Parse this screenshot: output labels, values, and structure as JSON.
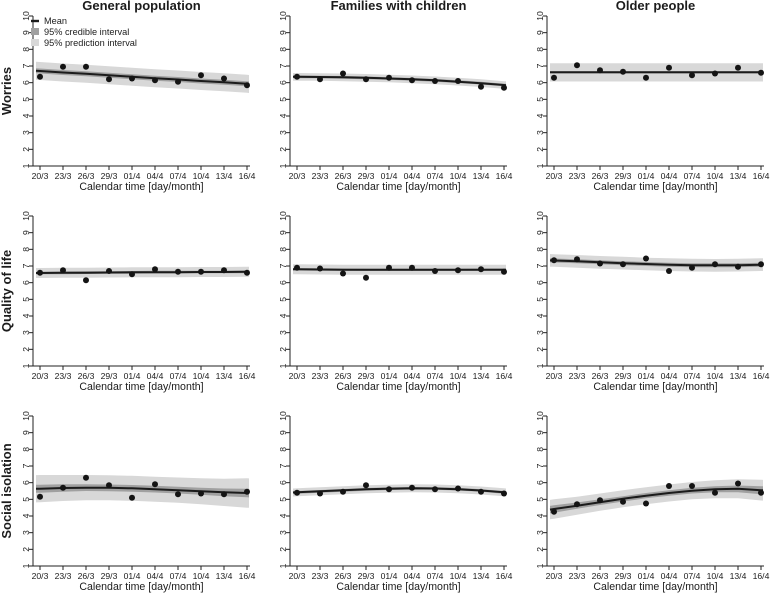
{
  "figure": {
    "columns": [
      "General population",
      "Families with children",
      "Older people"
    ],
    "rows": [
      "Worries",
      "Quality of life",
      "Social isolation"
    ],
    "x_label": "Calendar time [day/month]",
    "x_categories": [
      "20/3",
      "23/3",
      "26/3",
      "29/3",
      "01/4",
      "04/4",
      "07/4",
      "10/4",
      "13/4",
      "16/4"
    ],
    "y_ticks": [
      1,
      2,
      3,
      4,
      5,
      6,
      7,
      8,
      9,
      10
    ],
    "legend": {
      "mean": "Mean",
      "credible": "95% credible interval",
      "prediction": "95% prediction interval"
    },
    "colors": {
      "mean_line": "#1b1b1b",
      "point": "#141414",
      "credible_band": "#a0a0a0",
      "prediction_band": "#d8d8d8",
      "axis": "#222222"
    }
  },
  "chart_data": [
    {
      "type": "line",
      "row": "Worries",
      "column": "General population",
      "ylim": [
        1,
        10
      ],
      "points": [
        6.35,
        6.95,
        6.95,
        6.2,
        6.25,
        6.15,
        6.05,
        6.45,
        6.25,
        5.85
      ],
      "mean": [
        6.7,
        6.61,
        6.53,
        6.44,
        6.36,
        6.27,
        6.19,
        6.1,
        6.02,
        5.93
      ],
      "credible_hw": 0.15,
      "prediction_hw": 0.54
    },
    {
      "type": "line",
      "row": "Worries",
      "column": "Families with children",
      "ylim": [
        1,
        10
      ],
      "points": [
        6.35,
        6.2,
        6.55,
        6.2,
        6.3,
        6.15,
        6.1,
        6.1,
        5.75,
        5.7
      ],
      "mean": [
        6.35,
        6.34,
        6.32,
        6.29,
        6.25,
        6.2,
        6.14,
        6.06,
        5.97,
        5.86
      ],
      "credible_hw": 0.08,
      "prediction_hw": 0.23
    },
    {
      "type": "line",
      "row": "Worries",
      "column": "Older people",
      "ylim": [
        1,
        10
      ],
      "points": [
        6.3,
        7.05,
        6.75,
        6.65,
        6.3,
        6.9,
        6.45,
        6.55,
        6.9,
        6.6
      ],
      "mean": [
        6.62,
        6.62,
        6.62,
        6.62,
        6.62,
        6.62,
        6.62,
        6.62,
        6.62,
        6.62
      ],
      "credible_hw": 0.07,
      "prediction_hw": 0.55
    },
    {
      "type": "line",
      "row": "Quality of life",
      "column": "General population",
      "ylim": [
        1,
        10
      ],
      "points": [
        6.6,
        6.75,
        6.15,
        6.7,
        6.5,
        6.8,
        6.65,
        6.65,
        6.75,
        6.6
      ],
      "mean": [
        6.58,
        6.59,
        6.6,
        6.61,
        6.62,
        6.63,
        6.63,
        6.64,
        6.64,
        6.65
      ],
      "credible_hw": 0.08,
      "prediction_hw": 0.3
    },
    {
      "type": "line",
      "row": "Quality of life",
      "column": "Families with children",
      "ylim": [
        1,
        10
      ],
      "points": [
        6.9,
        6.85,
        6.55,
        6.3,
        6.9,
        6.9,
        6.7,
        6.75,
        6.8,
        6.65
      ],
      "mean": [
        6.8,
        6.79,
        6.78,
        6.77,
        6.77,
        6.77,
        6.77,
        6.77,
        6.78,
        6.78
      ],
      "credible_hw": 0.07,
      "prediction_hw": 0.3
    },
    {
      "type": "line",
      "row": "Quality of life",
      "column": "Older people",
      "ylim": [
        1,
        10
      ],
      "points": [
        7.35,
        7.4,
        7.15,
        7.1,
        7.45,
        6.7,
        6.9,
        7.1,
        6.95,
        7.1
      ],
      "mean": [
        7.33,
        7.28,
        7.22,
        7.17,
        7.12,
        7.08,
        7.05,
        7.04,
        7.05,
        7.08
      ],
      "credible_hw": 0.12,
      "prediction_hw": 0.38
    },
    {
      "type": "line",
      "row": "Social isolation",
      "column": "General population",
      "ylim": [
        1,
        10
      ],
      "points": [
        5.15,
        5.7,
        6.3,
        5.85,
        5.1,
        5.9,
        5.3,
        5.35,
        5.3,
        5.45
      ],
      "mean": [
        5.64,
        5.68,
        5.7,
        5.69,
        5.66,
        5.61,
        5.55,
        5.48,
        5.42,
        5.38
      ],
      "credible_hw": [
        0.24,
        0.22,
        0.2,
        0.2,
        0.2,
        0.2,
        0.2,
        0.21,
        0.23,
        0.26
      ],
      "prediction_hw": [
        0.82,
        0.78,
        0.76,
        0.75,
        0.75,
        0.75,
        0.76,
        0.78,
        0.82,
        0.88
      ]
    },
    {
      "type": "line",
      "row": "Social isolation",
      "column": "Families with children",
      "ylim": [
        1,
        10
      ],
      "points": [
        5.4,
        5.35,
        5.45,
        5.85,
        5.6,
        5.7,
        5.6,
        5.65,
        5.45,
        5.35
      ],
      "mean": [
        5.42,
        5.48,
        5.54,
        5.6,
        5.64,
        5.66,
        5.65,
        5.61,
        5.53,
        5.42
      ],
      "credible_hw": 0.08,
      "prediction_hw": 0.24
    },
    {
      "type": "line",
      "row": "Social isolation",
      "column": "Older people",
      "ylim": [
        1,
        10
      ],
      "points": [
        4.25,
        4.7,
        4.95,
        4.85,
        4.75,
        5.8,
        5.8,
        5.4,
        5.95,
        5.4
      ],
      "mean": [
        4.42,
        4.62,
        4.83,
        5.03,
        5.22,
        5.38,
        5.52,
        5.61,
        5.63,
        5.55
      ],
      "credible_hw": [
        0.22,
        0.19,
        0.17,
        0.16,
        0.16,
        0.16,
        0.17,
        0.18,
        0.2,
        0.24
      ],
      "prediction_hw": [
        0.58,
        0.54,
        0.52,
        0.51,
        0.51,
        0.51,
        0.52,
        0.54,
        0.57,
        0.62
      ]
    }
  ]
}
